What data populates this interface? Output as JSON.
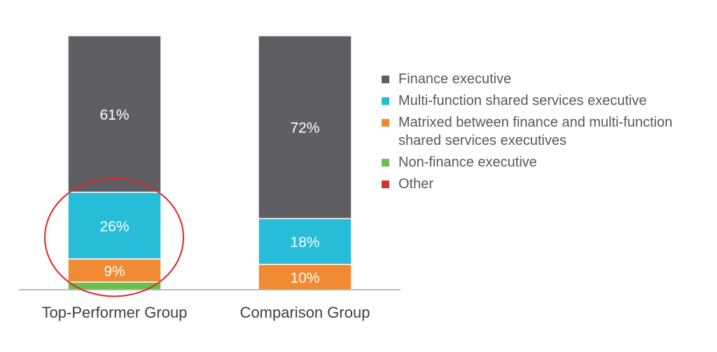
{
  "chart_data": {
    "type": "bar",
    "stacked": true,
    "categories": [
      "Top-Performer Group",
      "Comparison Group"
    ],
    "series": [
      {
        "name": "Finance executive",
        "values": [
          61,
          72
        ],
        "labels": [
          "61%",
          "72%"
        ],
        "color": "#5f5f63"
      },
      {
        "name": "Multi-function shared services executive",
        "values": [
          26,
          18
        ],
        "labels": [
          "26%",
          "18%"
        ],
        "color": "#27bcd8"
      },
      {
        "name": "Matrixed between finance and multi-function shared services executives",
        "values": [
          9,
          10
        ],
        "labels": [
          "9%",
          "10%"
        ],
        "color": "#f08a33"
      },
      {
        "name": "Non-finance executive",
        "values": [
          3,
          0
        ],
        "labels": [
          "",
          ""
        ],
        "color": "#6cbf4a"
      },
      {
        "name": "Other",
        "values": [
          0,
          0
        ],
        "labels": [
          "",
          ""
        ],
        "color": "#d5332d"
      }
    ],
    "ylim": [
      0,
      100
    ],
    "grid": false,
    "legend_position": "right",
    "annotation": {
      "type": "ellipse-highlight",
      "category": "Top-Performer Group",
      "series": [
        "Multi-function shared services executive",
        "Matrixed between finance and multi-function shared services executives"
      ],
      "color": "#e3232b"
    }
  }
}
